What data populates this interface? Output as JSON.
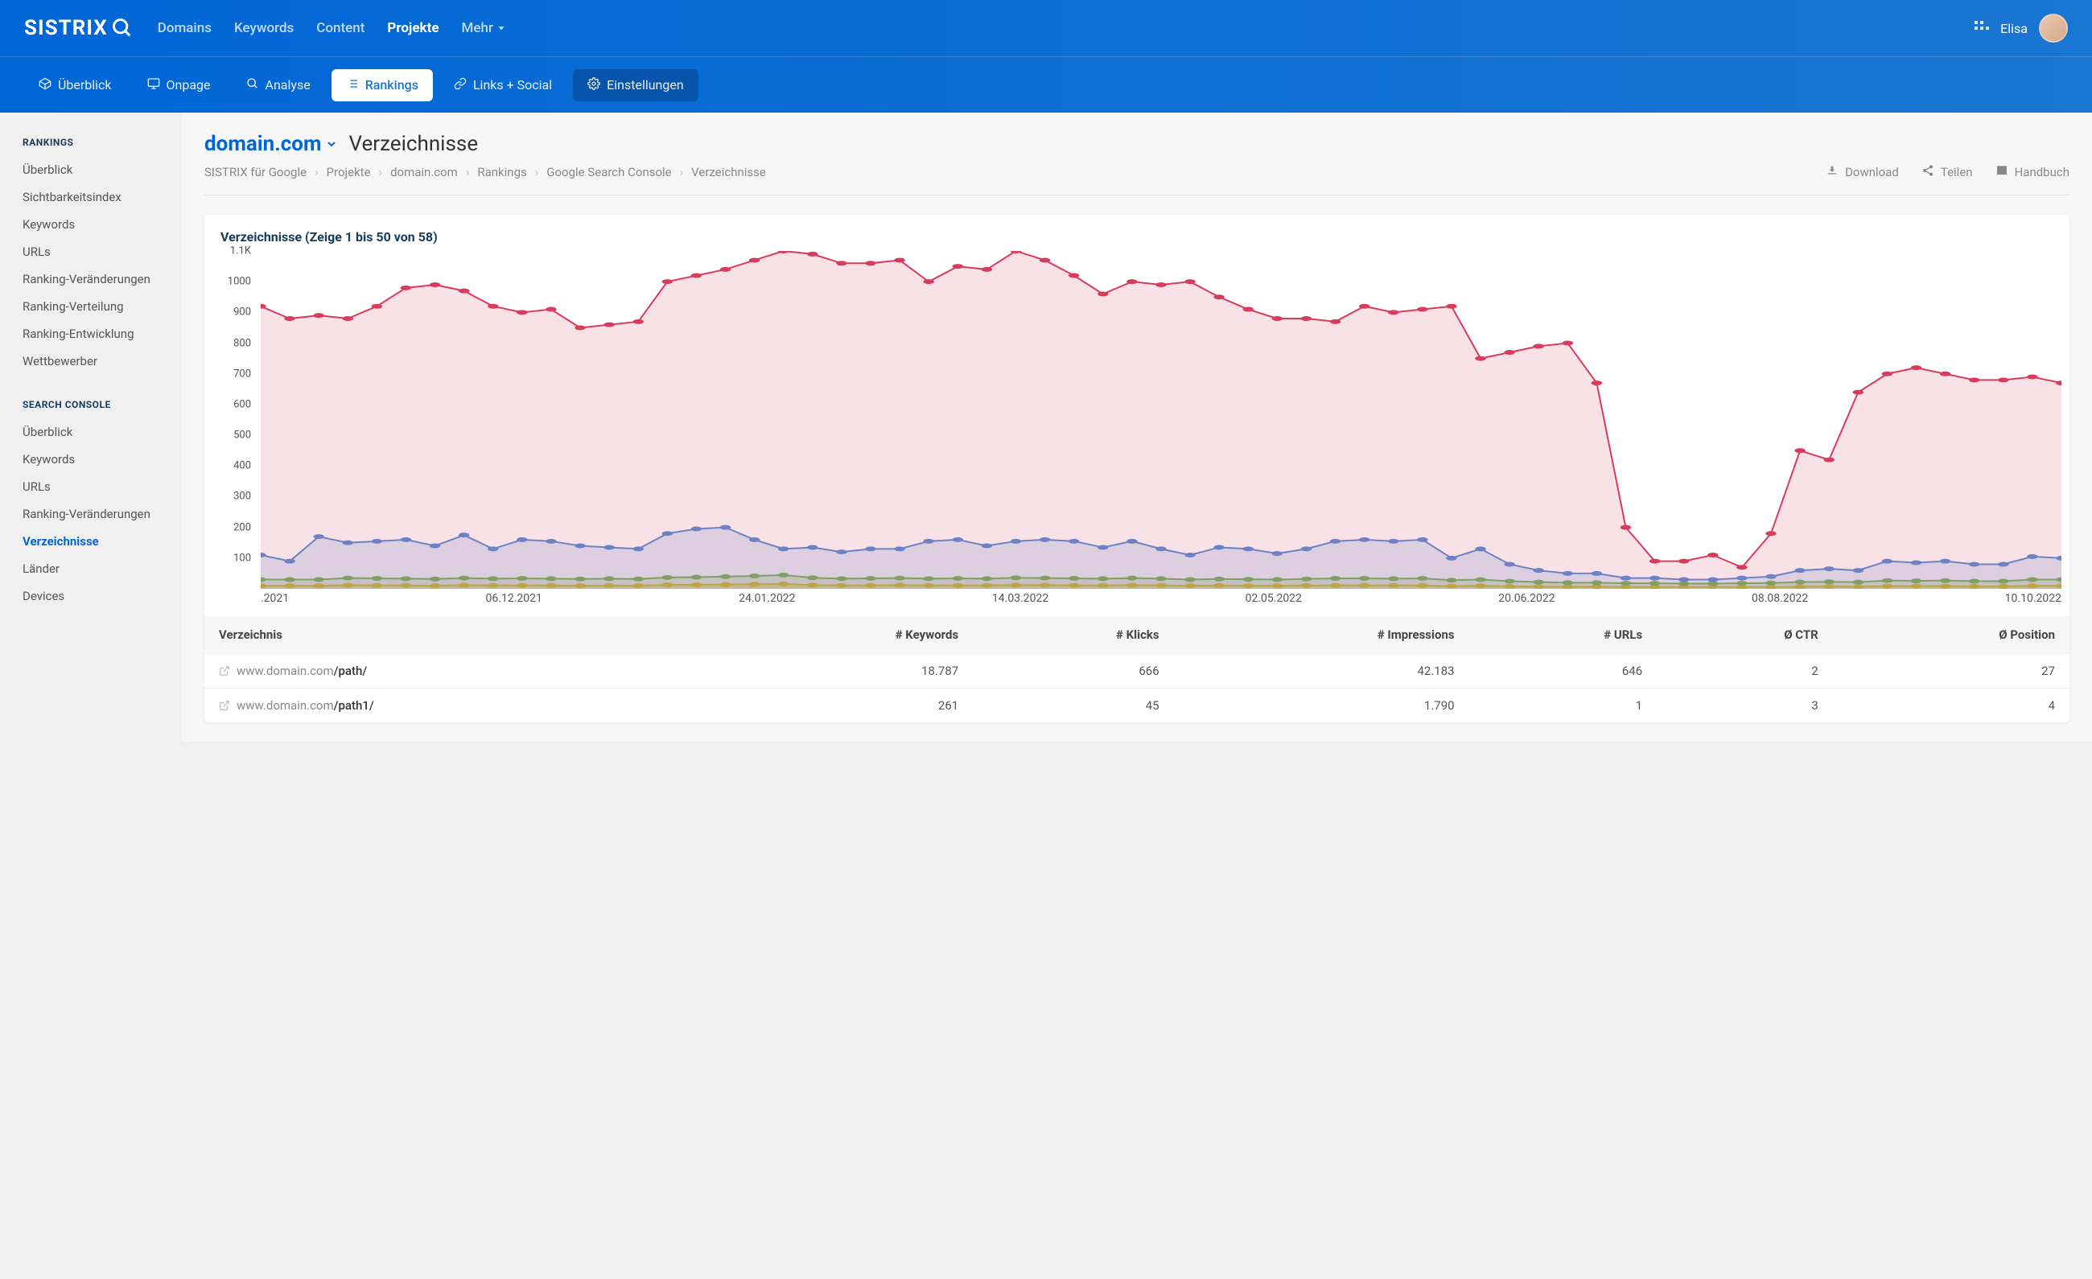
{
  "header": {
    "logo_text": "SISTRIX",
    "nav": [
      {
        "label": "Domains",
        "active": false
      },
      {
        "label": "Keywords",
        "active": false
      },
      {
        "label": "Content",
        "active": false
      },
      {
        "label": "Projekte",
        "active": true
      },
      {
        "label": "Mehr",
        "active": false,
        "dropdown": true
      }
    ],
    "user_name": "Elisa"
  },
  "subnav": [
    {
      "label": "Überblick",
      "icon": "cube"
    },
    {
      "label": "Onpage",
      "icon": "monitor"
    },
    {
      "label": "Analyse",
      "icon": "search"
    },
    {
      "label": "Rankings",
      "icon": "list",
      "active": true
    },
    {
      "label": "Links + Social",
      "icon": "link"
    },
    {
      "label": "Einstellungen",
      "icon": "gear",
      "dark": true
    }
  ],
  "sidebar": {
    "sections": [
      {
        "title": "RANKINGS",
        "items": [
          "Überblick",
          "Sichtbarkeitsindex",
          "Keywords",
          "URLs",
          "Ranking-Veränderungen",
          "Ranking-Verteilung",
          "Ranking-Entwicklung",
          "Wettbewerber"
        ]
      },
      {
        "title": "SEARCH CONSOLE",
        "items": [
          "Überblick",
          "Keywords",
          "URLs",
          "Ranking-Veränderungen",
          "Verzeichnisse",
          "Länder",
          "Devices"
        ],
        "active_index": 4
      }
    ]
  },
  "page": {
    "domain": "domain.com",
    "title": "Verzeichnisse",
    "breadcrumb": [
      "SISTRIX für Google",
      "Projekte",
      "domain.com",
      "Rankings",
      "Google Search Console",
      "Verzeichnisse"
    ],
    "actions": [
      {
        "label": "Download",
        "icon": "download"
      },
      {
        "label": "Teilen",
        "icon": "share"
      },
      {
        "label": "Handbuch",
        "icon": "book"
      }
    ]
  },
  "chart": {
    "title": "Verzeichnisse (Zeige 1 bis 50 von 58)",
    "type": "line-area",
    "y_max": 1100,
    "y_min": 0,
    "y_ticks": [
      {
        "v": 1100,
        "l": "1.1K"
      },
      {
        "v": 1000,
        "l": "1000"
      },
      {
        "v": 900,
        "l": "900"
      },
      {
        "v": 800,
        "l": "800"
      },
      {
        "v": 700,
        "l": "700"
      },
      {
        "v": 600,
        "l": "600"
      },
      {
        "v": 500,
        "l": "500"
      },
      {
        "v": 400,
        "l": "400"
      },
      {
        "v": 300,
        "l": "300"
      },
      {
        "v": 200,
        "l": "200"
      },
      {
        "v": 100,
        "l": "100"
      }
    ],
    "x_labels": [
      ".2021",
      "06.12.2021",
      "24.01.2022",
      "14.03.2022",
      "02.05.2022",
      "20.06.2022",
      "08.08.2022",
      "10.10.2022"
    ],
    "series": [
      {
        "name": "red",
        "color": "#d93b5c",
        "fill": "rgba(217,59,92,0.15)",
        "data": [
          920,
          880,
          890,
          880,
          920,
          980,
          990,
          970,
          920,
          900,
          910,
          850,
          860,
          870,
          1000,
          1020,
          1040,
          1070,
          1100,
          1090,
          1060,
          1060,
          1070,
          1000,
          1050,
          1040,
          1100,
          1070,
          1020,
          960,
          1000,
          990,
          1000,
          950,
          910,
          880,
          880,
          870,
          920,
          900,
          910,
          920,
          750,
          770,
          790,
          800,
          670,
          200,
          90,
          90,
          110,
          70,
          180,
          450,
          420,
          640,
          700,
          720,
          700,
          680,
          680,
          690,
          670
        ]
      },
      {
        "name": "blue",
        "color": "#5b8fd6",
        "fill": "rgba(91,143,214,0.2)",
        "data": [
          110,
          90,
          170,
          150,
          155,
          160,
          140,
          175,
          130,
          160,
          155,
          140,
          135,
          130,
          180,
          195,
          200,
          160,
          130,
          135,
          120,
          130,
          130,
          155,
          160,
          140,
          155,
          160,
          155,
          135,
          155,
          130,
          110,
          135,
          130,
          115,
          130,
          155,
          160,
          155,
          160,
          100,
          130,
          80,
          60,
          50,
          50,
          35,
          35,
          30,
          30,
          35,
          40,
          60,
          65,
          60,
          90,
          85,
          90,
          80,
          80,
          105,
          100
        ]
      },
      {
        "name": "green",
        "color": "#79b74a",
        "fill": "rgba(121,183,74,0.25)",
        "data": [
          30,
          30,
          30,
          35,
          34,
          33,
          32,
          35,
          33,
          34,
          33,
          32,
          33,
          32,
          37,
          38,
          40,
          42,
          45,
          36,
          33,
          34,
          35,
          33,
          34,
          33,
          36,
          35,
          34,
          33,
          35,
          33,
          30,
          32,
          31,
          30,
          32,
          34,
          34,
          33,
          34,
          28,
          30,
          25,
          22,
          20,
          20,
          18,
          18,
          17,
          17,
          18,
          19,
          22,
          23,
          22,
          27,
          26,
          27,
          25,
          25,
          30,
          30
        ]
      },
      {
        "name": "yellow",
        "color": "#f2c511",
        "fill": "rgba(242,197,17,0.35)",
        "data": [
          10,
          10,
          10,
          12,
          11,
          11,
          10,
          12,
          11,
          11,
          11,
          10,
          11,
          10,
          13,
          13,
          14,
          15,
          16,
          12,
          11,
          11,
          12,
          11,
          11,
          11,
          12,
          12,
          11,
          11,
          12,
          11,
          10,
          11,
          10,
          10,
          11,
          11,
          11,
          11,
          11,
          9,
          10,
          8,
          7,
          7,
          7,
          6,
          6,
          6,
          6,
          6,
          6,
          7,
          8,
          7,
          9,
          9,
          9,
          8,
          8,
          10,
          10
        ]
      }
    ],
    "marker_radius": 3,
    "line_width": 2,
    "background_color": "#ffffff"
  },
  "table": {
    "columns": [
      "Verzeichnis",
      "# Keywords",
      "# Klicks",
      "# Impressions",
      "# URLs",
      "Ø CTR",
      "Ø Position"
    ],
    "rows": [
      {
        "domain": "www.domain.com",
        "path": "/path/",
        "keywords": "18.787",
        "klicks": "666",
        "impressions": "42.183",
        "urls": "646",
        "ctr": "2",
        "position": "27"
      },
      {
        "domain": "www.domain.com",
        "path": "/path1/",
        "keywords": "261",
        "klicks": "45",
        "impressions": "1.790",
        "urls": "1",
        "ctr": "3",
        "position": "4"
      }
    ]
  }
}
